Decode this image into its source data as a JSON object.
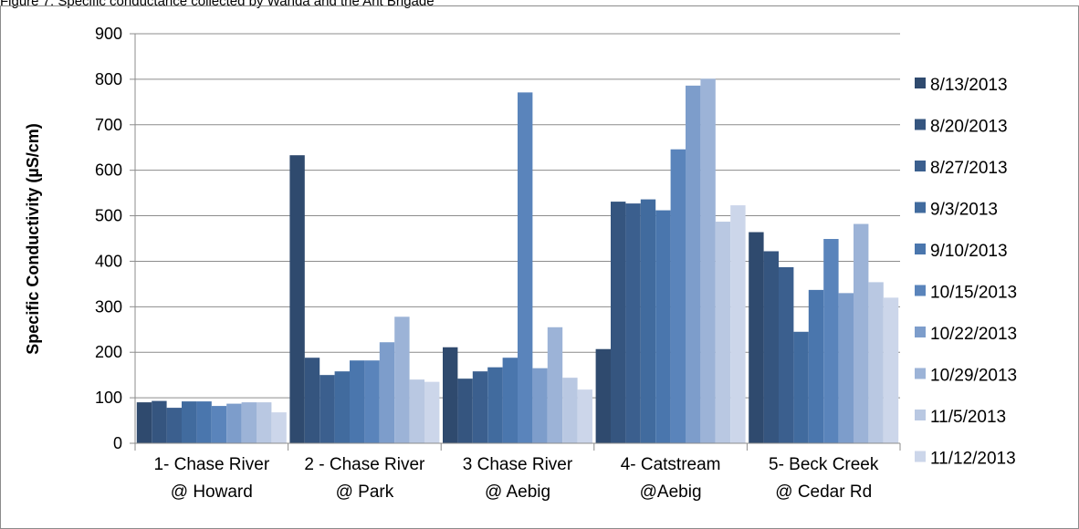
{
  "caption": "Figure 7: Specific conductance collected by Wanda and the Ant Brigade",
  "chart_data": {
    "type": "bar",
    "title": "",
    "xlabel": "",
    "ylabel": "Specific Conductivity (µS/cm)",
    "ylim": [
      0,
      900
    ],
    "yticks": [
      0,
      100,
      200,
      300,
      400,
      500,
      600,
      700,
      800,
      900
    ],
    "grid": true,
    "legend_position": "right",
    "categories": [
      [
        "1- Chase River",
        "@ Howard"
      ],
      [
        "2 - Chase River",
        "@ Park"
      ],
      [
        "3 Chase River",
        "@ Aebig"
      ],
      [
        "4- Catstream",
        "@Aebig"
      ],
      [
        "5- Beck Creek",
        "@ Cedar Rd"
      ]
    ],
    "series": [
      {
        "name": "8/13/2013",
        "color": "#2f4a6e",
        "values": [
          90,
          633,
          211,
          207,
          464
        ]
      },
      {
        "name": "8/20/2013",
        "color": "#35557f",
        "values": [
          93,
          188,
          142,
          531,
          422
        ]
      },
      {
        "name": "8/27/2013",
        "color": "#3b5f8e",
        "values": [
          78,
          150,
          158,
          527,
          387
        ]
      },
      {
        "name": "9/3/2013",
        "color": "#416b9e",
        "values": [
          92,
          158,
          167,
          536,
          245
        ]
      },
      {
        "name": "9/10/2013",
        "color": "#4a76ad",
        "values": [
          92,
          182,
          188,
          512,
          337
        ]
      },
      {
        "name": "10/15/2013",
        "color": "#5a84bb",
        "values": [
          82,
          182,
          771,
          646,
          449
        ]
      },
      {
        "name": "10/22/2013",
        "color": "#7d9dcb",
        "values": [
          87,
          222,
          165,
          786,
          330
        ]
      },
      {
        "name": "10/29/2013",
        "color": "#9cb3d7",
        "values": [
          90,
          278,
          255,
          801,
          482
        ]
      },
      {
        "name": "11/5/2013",
        "color": "#b9c8e2",
        "values": [
          90,
          140,
          144,
          487,
          354
        ]
      },
      {
        "name": "11/12/2013",
        "color": "#ccd6ea",
        "values": [
          68,
          135,
          118,
          523,
          320
        ]
      }
    ]
  }
}
